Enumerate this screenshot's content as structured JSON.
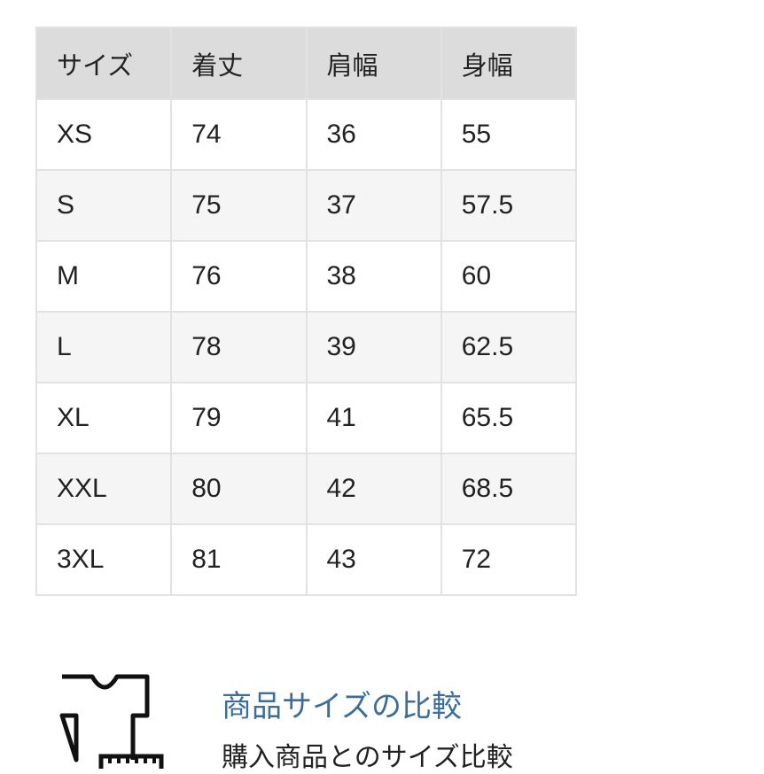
{
  "size_table": {
    "headers": [
      "サイズ",
      "着丈",
      "肩幅",
      "身幅"
    ],
    "rows": [
      [
        "XS",
        "74",
        "36",
        "55"
      ],
      [
        "S",
        "75",
        "37",
        "57.5"
      ],
      [
        "M",
        "76",
        "38",
        "60"
      ],
      [
        "L",
        "78",
        "39",
        "62.5"
      ],
      [
        "XL",
        "79",
        "41",
        "65.5"
      ],
      [
        "XXL",
        "80",
        "42",
        "68.5"
      ],
      [
        "3XL",
        "81",
        "43",
        "72"
      ]
    ]
  },
  "compare": {
    "icon": "tshirt-ruler-icon",
    "title": "商品サイズの比較",
    "subtitle": "購入商品とのサイズ比較",
    "title_color": "#3b6e9a"
  }
}
